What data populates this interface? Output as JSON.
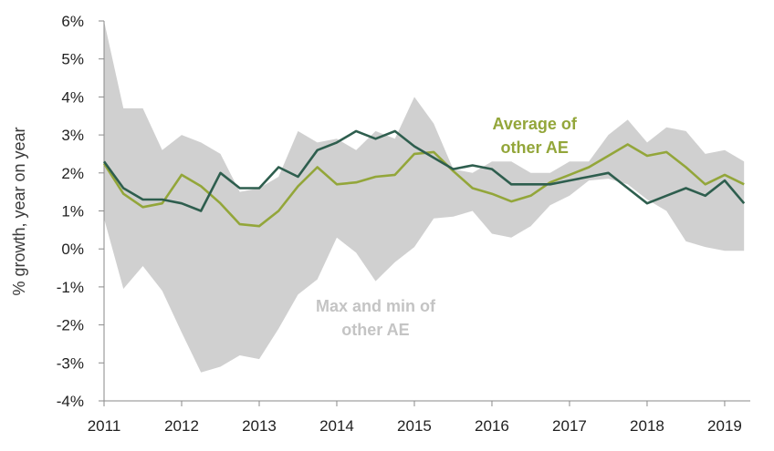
{
  "chart_data": {
    "type": "line",
    "ylabel": "% growth, year on year",
    "xlabel": "",
    "ylim": [
      -4,
      6
    ],
    "xlim": [
      2011,
      2019.33
    ],
    "y_ticks": [
      -4,
      -3,
      -2,
      -1,
      0,
      1,
      2,
      3,
      4,
      5,
      6
    ],
    "y_tick_labels": [
      "-4%",
      "-3%",
      "-2%",
      "-1%",
      "0%",
      "1%",
      "2%",
      "3%",
      "4%",
      "5%",
      "6%"
    ],
    "x_ticks": [
      2011,
      2012,
      2013,
      2014,
      2015,
      2016,
      2017,
      2018,
      2019
    ],
    "x_tick_labels": [
      "2011",
      "2012",
      "2013",
      "2014",
      "2015",
      "2016",
      "2017",
      "2018",
      "2019"
    ],
    "grid": false,
    "colors": {
      "uk": "#2e5e4e",
      "avg": "#93a63a",
      "band": "#d0d0d0"
    },
    "annotations": [
      {
        "lines": [
          "Average of",
          "other AE"
        ],
        "color": "#93a63a",
        "x": 2016.55,
        "y": 3.15
      },
      {
        "lines": [
          "Max and min of",
          "other AE"
        ],
        "color": "#c4c4c4",
        "x": 2014.5,
        "y": -1.65
      }
    ],
    "x": [
      2011,
      2011.25,
      2011.5,
      2011.75,
      2012,
      2012.25,
      2012.5,
      2012.75,
      2013,
      2013.25,
      2013.5,
      2013.75,
      2014,
      2014.25,
      2014.5,
      2014.75,
      2015,
      2015.25,
      2015.5,
      2015.75,
      2016,
      2016.25,
      2016.5,
      2016.75,
      2017,
      2017.25,
      2017.5,
      2017.75,
      2018,
      2018.25,
      2018.5,
      2018.75,
      2019,
      2019.25
    ],
    "series": [
      {
        "key": "max",
        "values": [
          6.0,
          3.7,
          3.7,
          2.6,
          3.0,
          2.8,
          2.5,
          1.5,
          1.6,
          1.9,
          3.1,
          2.8,
          2.9,
          2.6,
          3.1,
          2.9,
          4.0,
          3.3,
          2.1,
          2.0,
          2.3,
          2.3,
          2.0,
          2.0,
          2.3,
          2.3,
          3.0,
          3.4,
          2.8,
          3.2,
          3.1,
          2.5,
          2.6,
          2.3
        ]
      },
      {
        "key": "min",
        "values": [
          0.8,
          -1.05,
          -0.45,
          -1.1,
          -2.2,
          -3.25,
          -3.1,
          -2.8,
          -2.9,
          -2.1,
          -1.2,
          -0.8,
          0.3,
          -0.1,
          -0.85,
          -0.35,
          0.05,
          0.8,
          0.85,
          1.0,
          0.4,
          0.3,
          0.6,
          1.15,
          1.4,
          1.8,
          1.85,
          1.7,
          1.3,
          1.0,
          0.2,
          0.05,
          -0.05,
          -0.05
        ]
      },
      {
        "key": "avg",
        "values": [
          2.25,
          1.45,
          1.1,
          1.2,
          1.95,
          1.65,
          1.2,
          0.65,
          0.6,
          1.0,
          1.65,
          2.15,
          1.7,
          1.75,
          1.9,
          1.95,
          2.5,
          2.55,
          2.05,
          1.6,
          1.45,
          1.25,
          1.4,
          1.75,
          1.95,
          2.15,
          2.45,
          2.75,
          2.45,
          2.55,
          2.15,
          1.7,
          1.95,
          1.7
        ]
      },
      {
        "key": "uk",
        "values": [
          2.3,
          1.6,
          1.3,
          1.3,
          1.2,
          1.0,
          2.0,
          1.6,
          1.6,
          2.15,
          1.9,
          2.6,
          2.8,
          3.1,
          2.9,
          3.1,
          2.7,
          2.4,
          2.1,
          2.2,
          2.1,
          1.7,
          1.7,
          1.7,
          1.8,
          1.9,
          2.0,
          1.6,
          1.2,
          1.4,
          1.6,
          1.4,
          1.8,
          1.2
        ]
      }
    ]
  }
}
